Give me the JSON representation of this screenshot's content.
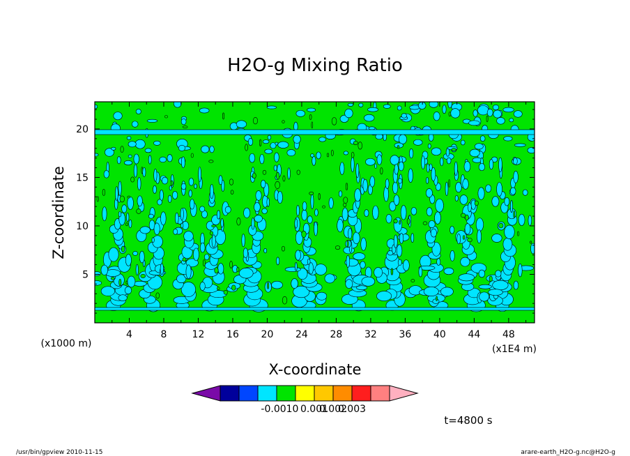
{
  "chart_data": {
    "type": "heatmap",
    "title": "H2O-g Mixing Ratio",
    "xlabel": "X-coordinate",
    "ylabel": "Z-coordinate",
    "x_unit_left": "(x1000 m)",
    "x_unit_right": "(x1E4 m)",
    "xlim": [
      0,
      51
    ],
    "ylim": [
      0,
      22.8
    ],
    "x_ticks": [
      "4",
      "8",
      "12",
      "16",
      "20",
      "24",
      "28",
      "32",
      "36",
      "40",
      "44",
      "48"
    ],
    "y_ticks": [
      "5",
      "10",
      "15",
      "20"
    ],
    "colorbar": {
      "colors": [
        "#7a0aa8",
        "#00009b",
        "#0046ff",
        "#00e5ff",
        "#00e400",
        "#ffff00",
        "#ffc800",
        "#ff8c00",
        "#ff1e1e",
        "#ff8080",
        "#ffb0c0"
      ],
      "labels": [
        "-0.001",
        "0",
        "0.001",
        "0.002",
        "0.003"
      ]
    },
    "time_label": "t=4800 s",
    "dominant_level": "0",
    "secondary_level": "-0.001 to 0",
    "plumes_x": [
      2.5,
      6.5,
      10.5,
      14,
      18.5,
      24.5,
      30,
      35,
      39.5,
      43.5,
      47.5
    ]
  },
  "footer": {
    "left": "/usr/bin/gpview  2010-11-15",
    "right": "arare-earth_H2O-g.nc@H2O-g"
  },
  "colors": {
    "green": "#00e400",
    "cyan": "#00e5ff",
    "contour": "#000000"
  }
}
